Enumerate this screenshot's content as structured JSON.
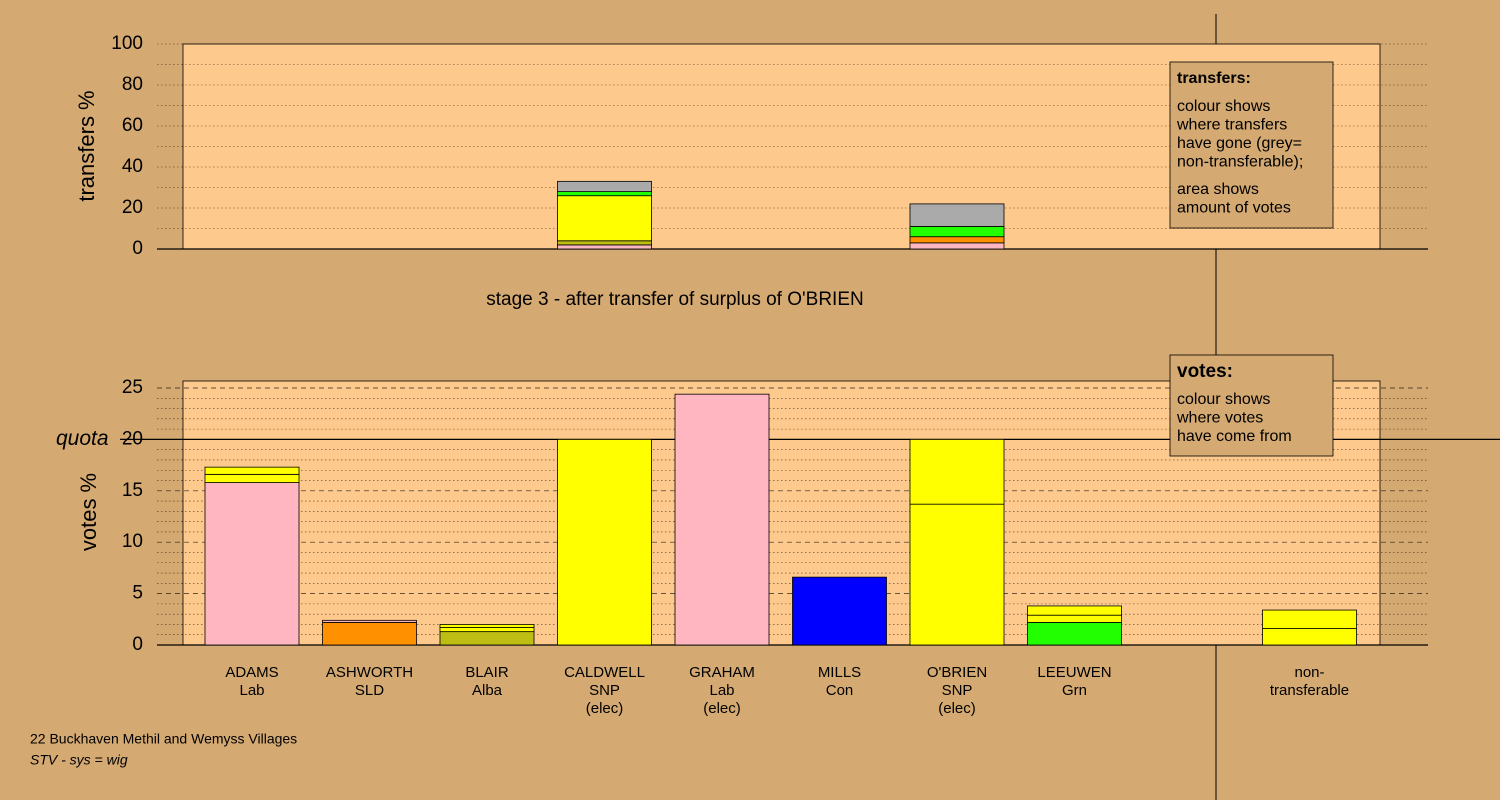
{
  "chart_data": [
    {
      "type": "stacked-bar",
      "ylabel": "transfers %",
      "caption": "stage 3 - after transfer of surplus of O'BRIEN",
      "ylim": [
        0,
        100
      ],
      "yticks": [
        0,
        20,
        40,
        60,
        80,
        100
      ],
      "minor_yticks": [
        10,
        30,
        50,
        70,
        90
      ],
      "stacks": [
        [],
        [],
        [],
        [
          {
            "value": 2,
            "color": "#ffb6c1"
          },
          {
            "value": 2,
            "color": "#bdbd13"
          },
          {
            "value": 22,
            "color": "#ffff00"
          },
          {
            "value": 2,
            "color": "#22ff00"
          },
          {
            "value": 5,
            "color": "#aaaaaa"
          }
        ],
        [],
        [],
        [
          {
            "value": 3,
            "color": "#ffb6c1"
          },
          {
            "value": 3,
            "color": "#ff9000"
          },
          {
            "value": 5,
            "color": "#22ff00"
          },
          {
            "value": 11,
            "color": "#aaaaaa"
          }
        ],
        [],
        [],
        []
      ],
      "legend": {
        "title": "transfers:",
        "paragraphs": [
          [
            "colour shows",
            "where transfers",
            "have gone (grey=",
            "non-transferable);"
          ],
          [
            "area shows",
            "amount of votes"
          ]
        ]
      }
    },
    {
      "type": "stacked-bar",
      "ylabel": "votes %",
      "ylim": [
        0,
        25.7
      ],
      "yticks": [
        0,
        5,
        10,
        15,
        {
          "value": 20,
          "label": "20"
        },
        25
      ],
      "minor_yticks": [
        1,
        2,
        3,
        4,
        6,
        7,
        8,
        9,
        11,
        12,
        13,
        14,
        16,
        17,
        18,
        19,
        21,
        22,
        23,
        24
      ],
      "quota": {
        "value": 20,
        "label": "quota"
      },
      "categories": [
        [
          "ADAMS",
          "Lab"
        ],
        [
          "ASHWORTH",
          "SLD"
        ],
        [
          "BLAIR",
          "Alba"
        ],
        [
          "CALDWELL",
          "SNP",
          "(elec)"
        ],
        [
          "GRAHAM",
          "Lab",
          "(elec)"
        ],
        [
          "MILLS",
          "Con"
        ],
        [
          "O'BRIEN",
          "SNP",
          "(elec)"
        ],
        [
          "LEEUWEN",
          "Grn"
        ],
        null,
        [
          "non-",
          "transferable"
        ]
      ],
      "stacks": [
        [
          {
            "value": 15.8,
            "color": "#ffb6c1"
          },
          {
            "value": 0.8,
            "color": "#ffff00"
          },
          {
            "value": 0.7,
            "color": "#ffff00"
          }
        ],
        [
          {
            "value": 2.2,
            "color": "#ff9000"
          },
          {
            "value": 0.2,
            "color": "#ffb6c1"
          }
        ],
        [
          {
            "value": 1.3,
            "color": "#bdbd13"
          },
          {
            "value": 0.4,
            "color": "#ffff00"
          },
          {
            "value": 0.3,
            "color": "#ffff00"
          }
        ],
        [
          {
            "value": 20,
            "color": "#ffff00"
          }
        ],
        [
          {
            "value": 24.4,
            "color": "#ffb6c1"
          }
        ],
        [
          {
            "value": 6.6,
            "color": "#0000ff"
          }
        ],
        [
          {
            "value": 13.7,
            "color": "#ffff00"
          },
          {
            "value": 6.3,
            "color": "#ffff00"
          }
        ],
        [
          {
            "value": 2.2,
            "color": "#22ff00"
          },
          {
            "value": 0.7,
            "color": "#ffff00"
          },
          {
            "value": 0.9,
            "color": "#ffff00"
          }
        ],
        [],
        [
          {
            "value": 1.6,
            "color": "#ffff00"
          },
          {
            "value": 1.8,
            "color": "#ffff00"
          }
        ]
      ],
      "legend": {
        "title": "votes:",
        "paragraphs": [
          [
            "colour shows",
            "where votes",
            "have come from"
          ]
        ]
      }
    }
  ],
  "footer": {
    "district": "22 Buckhaven Methil and Wemyss Villages",
    "system": "STV - sys = wig"
  }
}
